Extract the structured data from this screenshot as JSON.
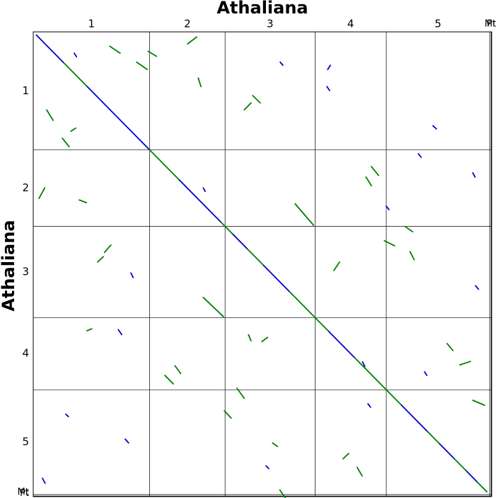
{
  "chart_data": {
    "type": "dotplot",
    "title": "Athaliana",
    "y_label": "Athaliana",
    "xlim": [
      0,
      119.72
    ],
    "ylim": [
      0,
      119.72
    ],
    "y_inverted": true,
    "xticks": [
      {
        "value": 15.2,
        "label": "1"
      },
      {
        "value": 40.25,
        "label": "2"
      },
      {
        "value": 61.85,
        "label": "3"
      },
      {
        "value": 82.9,
        "label": "4"
      },
      {
        "value": 105.7,
        "label": "5"
      },
      {
        "value": 119.38,
        "label": "Mt"
      },
      {
        "value": 119.65,
        "label": "Pt"
      }
    ],
    "yticks": [
      {
        "value": 15.2,
        "label": "1"
      },
      {
        "value": 40.25,
        "label": "2"
      },
      {
        "value": 61.85,
        "label": "3"
      },
      {
        "value": 82.9,
        "label": "4"
      },
      {
        "value": 105.7,
        "label": "5"
      },
      {
        "value": 119.38,
        "label": "Mt"
      },
      {
        "value": 119.65,
        "label": "Pt"
      }
    ],
    "boundaries": [
      30.4,
      50.1,
      73.6,
      92.2,
      119.2,
      119.57
    ],
    "series": [
      {
        "color": "#0000cc",
        "segments": [
          [
            0.8,
            0.8,
            8,
            8
          ],
          [
            14,
            14,
            30.4,
            30.4
          ],
          [
            38,
            38,
            49,
            49
          ],
          [
            52,
            52,
            56,
            56
          ],
          [
            60,
            60,
            67,
            67
          ],
          [
            77,
            77,
            84,
            84
          ],
          [
            96,
            96,
            103,
            103
          ],
          [
            106,
            106,
            110,
            110
          ],
          [
            113,
            113,
            116,
            116
          ],
          [
            10.7,
            5.5,
            11.3,
            6.4
          ],
          [
            76.9,
            9.7,
            77.6,
            8.6
          ],
          [
            104.4,
            24.2,
            105.3,
            25.0
          ],
          [
            114.8,
            36.3,
            115.4,
            37.4
          ],
          [
            115.5,
            65.4,
            116.3,
            66.3
          ],
          [
            24.0,
            104.9,
            24.9,
            105.9
          ],
          [
            2.4,
            115.0,
            3.1,
            116.3
          ],
          [
            87.4,
            95.8,
            88.1,
            96.7
          ],
          [
            102.2,
            87.6,
            102.8,
            88.5
          ],
          [
            22.2,
            76.7,
            23.1,
            78.0
          ],
          [
            25.5,
            62.1,
            26.1,
            63.3
          ],
          [
            76.7,
            14.1,
            77.4,
            15.1
          ],
          [
            44.4,
            40.2,
            44.9,
            41.1
          ],
          [
            92.2,
            44.9,
            92.9,
            45.8
          ],
          [
            60.8,
            111.8,
            61.5,
            112.5
          ],
          [
            8.5,
            98.5,
            9.2,
            99.1
          ],
          [
            64.5,
            7.8,
            65.2,
            8.6
          ],
          [
            100.6,
            31.4,
            101.3,
            32.3
          ],
          [
            86.0,
            85.0,
            86.6,
            86.2
          ]
        ]
      },
      {
        "color": "#008000",
        "segments": [
          [
            8,
            8,
            14,
            14
          ],
          [
            30.4,
            30.4,
            38,
            38
          ],
          [
            49,
            49,
            52,
            52
          ],
          [
            56,
            56,
            60,
            60
          ],
          [
            67,
            67,
            77,
            77
          ],
          [
            84,
            84,
            96,
            96
          ],
          [
            103,
            103,
            106,
            106
          ],
          [
            110,
            110,
            113,
            113
          ],
          [
            116,
            116,
            118.5,
            118.5
          ],
          [
            20.0,
            3.7,
            22.7,
            5.5
          ],
          [
            27.0,
            7.8,
            29.8,
            9.7
          ],
          [
            40.3,
            3.1,
            42.7,
            1.3
          ],
          [
            43.1,
            11.9,
            43.8,
            14.1
          ],
          [
            3.5,
            20.1,
            5.2,
            22.8
          ],
          [
            7.6,
            27.4,
            9.4,
            29.6
          ],
          [
            1.5,
            42.9,
            3.0,
            40.2
          ],
          [
            12.0,
            43.3,
            13.9,
            44.0
          ],
          [
            55.1,
            20.1,
            56.9,
            18.3
          ],
          [
            57.3,
            16.4,
            59.3,
            18.3
          ],
          [
            68.4,
            44.3,
            73.2,
            49.8
          ],
          [
            44.4,
            68.4,
            49.7,
            73.4
          ],
          [
            16.8,
            59.3,
            18.3,
            57.9
          ],
          [
            18.6,
            56.8,
            20.3,
            54.9
          ],
          [
            78.5,
            61.5,
            80.0,
            59.3
          ],
          [
            91.7,
            53.8,
            94.4,
            55.1
          ],
          [
            97.2,
            50.2,
            99.1,
            51.5
          ],
          [
            86.9,
            37.4,
            88.3,
            39.6
          ],
          [
            88.3,
            34.7,
            90.2,
            37.0
          ],
          [
            108.1,
            80.3,
            109.6,
            82.1
          ],
          [
            111.4,
            85.8,
            114.2,
            84.9
          ],
          [
            34.4,
            88.5,
            36.6,
            90.7
          ],
          [
            53.2,
            91.8,
            55.1,
            94.4
          ],
          [
            49.9,
            97.6,
            51.7,
            99.5
          ],
          [
            62.5,
            105.9,
            63.8,
            106.8
          ],
          [
            80.9,
            110.0,
            82.4,
            108.6
          ],
          [
            84.6,
            112.2,
            85.9,
            114.4
          ],
          [
            114.8,
            94.9,
            117.9,
            96.2
          ],
          [
            59.7,
            79.8,
            61.2,
            78.7
          ],
          [
            14.0,
            77.0,
            15.3,
            76.5
          ],
          [
            9.8,
            25.6,
            11.1,
            24.8
          ],
          [
            37.0,
            86.0,
            38.5,
            88.0
          ],
          [
            30.0,
            5.0,
            32.2,
            6.3
          ],
          [
            64.4,
            118.0,
            65.8,
            120.0
          ],
          [
            98.4,
            56.6,
            99.5,
            58.7
          ],
          [
            56.2,
            78.0,
            56.9,
            79.6
          ]
        ]
      }
    ]
  }
}
